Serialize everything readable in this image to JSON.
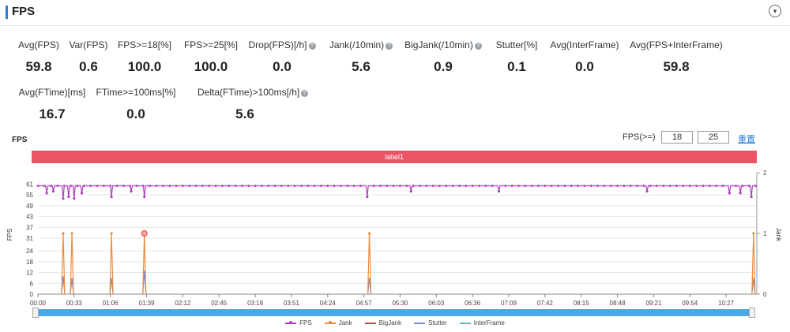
{
  "header": {
    "title": "FPS",
    "collapse_icon": "chevron-down-icon"
  },
  "metrics_row1": [
    {
      "label": "Avg(FPS)",
      "value": "59.8",
      "help": false
    },
    {
      "label": "Var(FPS)",
      "value": "0.6",
      "help": false
    },
    {
      "label": "FPS>=18[%]",
      "value": "100.0",
      "help": false
    },
    {
      "label": "FPS>=25[%]",
      "value": "100.0",
      "help": false
    },
    {
      "label": "Drop(FPS)[/h]",
      "value": "0.0",
      "help": true
    },
    {
      "label": "Jank(/10min)",
      "value": "5.6",
      "help": true
    },
    {
      "label": "BigJank(/10min)",
      "value": "0.9",
      "help": true
    },
    {
      "label": "Stutter[%]",
      "value": "0.1",
      "help": false
    },
    {
      "label": "Avg(InterFrame)",
      "value": "0.0",
      "help": false
    },
    {
      "label": "Avg(FPS+InterFrame)",
      "value": "59.8",
      "help": false
    }
  ],
  "metrics_row2": [
    {
      "label": "Avg(FTime)[ms]",
      "value": "16.7",
      "help": false
    },
    {
      "label": "FTime>=100ms[%]",
      "value": "0.0",
      "help": false
    },
    {
      "label": "Delta(FTime)>100ms[/h]",
      "value": "5.6",
      "help": true
    }
  ],
  "controls": {
    "chart_title": "FPS",
    "threshold_label": "FPS(>=)",
    "threshold_low": "18",
    "threshold_high": "25",
    "reset_label": "重置"
  },
  "label_bar": {
    "text": "label1",
    "color": "#ec5466"
  },
  "colors": {
    "fps": "#b13fbf",
    "jank": "#f08a3e",
    "bigjank": "#e0403c",
    "stutter": "#6f8fd9",
    "interframe": "#3ec9c9",
    "scrollbar": "#4aa8e8"
  },
  "chart_data": {
    "type": "line",
    "ylabel": "FPS",
    "y2label": "Jank",
    "yticks": [
      0,
      6,
      12,
      18,
      24,
      31,
      37,
      43,
      49,
      55,
      61
    ],
    "y2ticks": [
      0,
      1,
      2
    ],
    "xticks": [
      "00:00",
      "00:33",
      "01:06",
      "01:39",
      "02:12",
      "02:45",
      "03:18",
      "03:51",
      "04:24",
      "04:57",
      "05:30",
      "06:03",
      "06:36",
      "07:09",
      "07:42",
      "08:15",
      "08:48",
      "09:21",
      "09:54",
      "10:27"
    ],
    "x_range_seconds": [
      0,
      655
    ],
    "fps_baseline": 60,
    "fps_dips": [
      {
        "t": 8,
        "fps": 56
      },
      {
        "t": 14,
        "fps": 57
      },
      {
        "t": 23,
        "fps": 53
      },
      {
        "t": 28,
        "fps": 54
      },
      {
        "t": 33,
        "fps": 53
      },
      {
        "t": 40,
        "fps": 56
      },
      {
        "t": 67,
        "fps": 54
      },
      {
        "t": 85,
        "fps": 57
      },
      {
        "t": 97,
        "fps": 54
      },
      {
        "t": 300,
        "fps": 54
      },
      {
        "t": 340,
        "fps": 57
      },
      {
        "t": 420,
        "fps": 57
      },
      {
        "t": 555,
        "fps": 57
      },
      {
        "t": 630,
        "fps": 56
      },
      {
        "t": 640,
        "fps": 56
      },
      {
        "t": 650,
        "fps": 54
      }
    ],
    "series": [
      {
        "name": "FPS",
        "values": "line near 60 with dips listed in fps_dips"
      },
      {
        "name": "Jank",
        "x": [
          23,
          31,
          67,
          97,
          302,
          652
        ],
        "values": [
          1,
          1,
          1,
          1,
          1,
          1
        ]
      },
      {
        "name": "BigJank",
        "x": [
          97
        ],
        "values": [
          1
        ]
      },
      {
        "name": "Stutter",
        "x": [
          23,
          31,
          67,
          97,
          302,
          652
        ],
        "values": [
          10,
          9,
          9,
          13,
          9,
          9
        ]
      },
      {
        "name": "InterFrame",
        "values": []
      }
    ],
    "legend": [
      "FPS",
      "Jank",
      "BigJank",
      "Stutter",
      "InterFrame"
    ],
    "legend_position": "bottom"
  }
}
